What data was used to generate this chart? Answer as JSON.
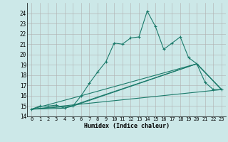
{
  "title": "",
  "xlabel": "Humidex (Indice chaleur)",
  "bg_color": "#cce8e8",
  "grid_color": "#b0b0b0",
  "line_color": "#1a7a6a",
  "xlim": [
    -0.5,
    23.5
  ],
  "ylim": [
    14,
    25
  ],
  "yticks": [
    14,
    15,
    16,
    17,
    18,
    19,
    20,
    21,
    22,
    23,
    24
  ],
  "xticks": [
    0,
    1,
    2,
    3,
    4,
    5,
    6,
    7,
    8,
    9,
    10,
    11,
    12,
    13,
    14,
    15,
    16,
    17,
    18,
    19,
    20,
    21,
    22,
    23
  ],
  "line1_x": [
    0,
    1,
    2,
    3,
    4,
    5,
    6,
    7,
    8,
    9,
    10,
    11,
    12,
    13,
    14,
    15,
    16,
    17,
    18,
    19,
    20,
    21,
    22,
    23
  ],
  "line1_y": [
    14.7,
    15.0,
    15.0,
    15.1,
    14.8,
    15.0,
    16.0,
    17.2,
    18.3,
    19.3,
    21.1,
    21.0,
    21.6,
    21.7,
    24.2,
    22.7,
    20.5,
    21.1,
    21.7,
    19.7,
    19.1,
    17.3,
    16.6,
    16.6
  ],
  "line2_x": [
    0,
    4,
    20,
    23
  ],
  "line2_y": [
    14.7,
    14.8,
    19.1,
    16.6
  ],
  "line3_x": [
    0,
    5,
    20,
    23
  ],
  "line3_y": [
    14.7,
    15.0,
    19.1,
    16.6
  ],
  "line4_x": [
    0,
    6,
    20,
    23
  ],
  "line4_y": [
    14.7,
    16.0,
    19.1,
    16.6
  ],
  "line5_x": [
    0,
    23
  ],
  "line5_y": [
    14.7,
    16.6
  ]
}
